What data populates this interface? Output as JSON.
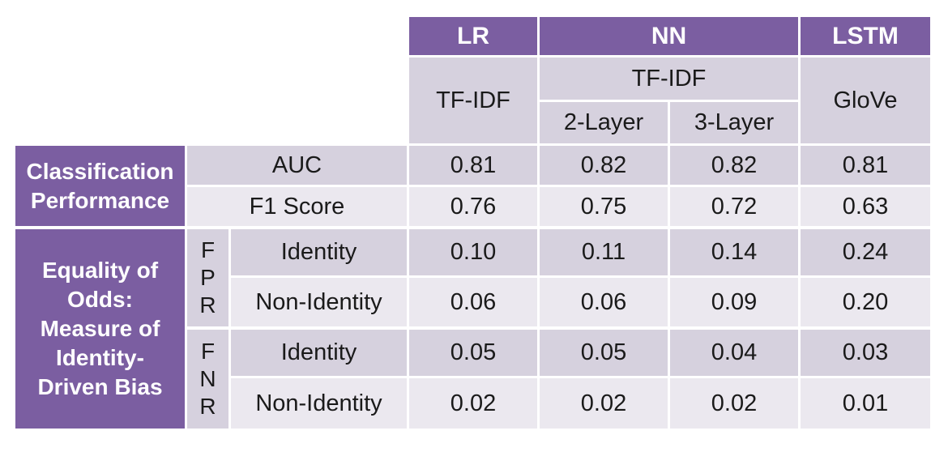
{
  "header": {
    "models": [
      "LR",
      "NN",
      "LSTM"
    ],
    "lr_feature": "TF-IDF",
    "nn_feature": "TF-IDF",
    "nn_layers": [
      "2-Layer",
      "3-Layer"
    ],
    "lstm_feature": "GloVe"
  },
  "groups": {
    "classification": "Classification Performance",
    "equality": "Equality of Odds: Measure of Identity-Driven Bias"
  },
  "subgroups": {
    "fpr": [
      "F",
      "P",
      "R"
    ],
    "fnr": [
      "F",
      "N",
      "R"
    ]
  },
  "rows": [
    {
      "label": "AUC",
      "values": [
        "0.81",
        "0.82",
        "0.82",
        "0.81"
      ]
    },
    {
      "label": "F1 Score",
      "values": [
        "0.76",
        "0.75",
        "0.72",
        "0.63"
      ]
    },
    {
      "label": "Identity",
      "values": [
        "0.10",
        "0.11",
        "0.14",
        "0.24"
      ]
    },
    {
      "label": "Non-Identity",
      "values": [
        "0.06",
        "0.06",
        "0.09",
        "0.20"
      ]
    },
    {
      "label": "Identity",
      "values": [
        "0.05",
        "0.05",
        "0.04",
        "0.03"
      ]
    },
    {
      "label": "Non-Identity",
      "values": [
        "0.02",
        "0.02",
        "0.02",
        "0.01"
      ]
    }
  ]
}
